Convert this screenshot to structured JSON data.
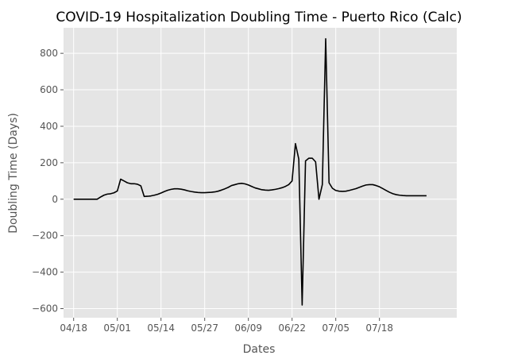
{
  "chart_data": {
    "type": "line",
    "title": "COVID-19 Hospitalization Doubling Time - Puerto Rico (Calc)",
    "xlabel": "Dates",
    "ylabel": "Doubling Time (Days)",
    "x_start": "2020-04-18",
    "x_step_days": 1,
    "xlim": [
      -3,
      114
    ],
    "ylim": [
      -650,
      940
    ],
    "x_ticks": [
      {
        "day": 0,
        "label": "04/18"
      },
      {
        "day": 13,
        "label": "05/01"
      },
      {
        "day": 26,
        "label": "05/14"
      },
      {
        "day": 39,
        "label": "05/27"
      },
      {
        "day": 52,
        "label": "06/09"
      },
      {
        "day": 65,
        "label": "06/22"
      },
      {
        "day": 78,
        "label": "07/05"
      },
      {
        "day": 91,
        "label": "07/18"
      }
    ],
    "y_ticks": [
      -600,
      -400,
      -200,
      0,
      200,
      400,
      600,
      800
    ],
    "grid": true,
    "series": [
      {
        "color": "#000000",
        "points": [
          [
            0,
            0
          ],
          [
            1,
            0
          ],
          [
            2,
            0
          ],
          [
            3,
            0
          ],
          [
            4,
            0
          ],
          [
            5,
            0
          ],
          [
            6,
            0
          ],
          [
            7,
            0
          ],
          [
            8,
            12
          ],
          [
            9,
            22
          ],
          [
            10,
            28
          ],
          [
            11,
            30
          ],
          [
            12,
            35
          ],
          [
            13,
            45
          ],
          [
            14,
            110
          ],
          [
            15,
            100
          ],
          [
            16,
            90
          ],
          [
            17,
            85
          ],
          [
            18,
            85
          ],
          [
            19,
            82
          ],
          [
            20,
            73
          ],
          [
            21,
            15
          ],
          [
            22,
            16
          ],
          [
            23,
            18
          ],
          [
            24,
            22
          ],
          [
            25,
            27
          ],
          [
            26,
            34
          ],
          [
            27,
            42
          ],
          [
            28,
            49
          ],
          [
            29,
            54
          ],
          [
            30,
            57
          ],
          [
            31,
            57
          ],
          [
            32,
            55
          ],
          [
            33,
            51
          ],
          [
            34,
            46
          ],
          [
            35,
            42
          ],
          [
            36,
            39
          ],
          [
            37,
            37
          ],
          [
            38,
            36
          ],
          [
            39,
            36
          ],
          [
            40,
            37
          ],
          [
            41,
            38
          ],
          [
            42,
            40
          ],
          [
            43,
            44
          ],
          [
            44,
            50
          ],
          [
            45,
            57
          ],
          [
            46,
            65
          ],
          [
            47,
            75
          ],
          [
            48,
            80
          ],
          [
            49,
            85
          ],
          [
            50,
            87
          ],
          [
            51,
            84
          ],
          [
            52,
            78
          ],
          [
            53,
            70
          ],
          [
            54,
            62
          ],
          [
            55,
            57
          ],
          [
            56,
            52
          ],
          [
            57,
            50
          ],
          [
            58,
            49
          ],
          [
            59,
            51
          ],
          [
            60,
            54
          ],
          [
            61,
            58
          ],
          [
            62,
            63
          ],
          [
            63,
            70
          ],
          [
            64,
            80
          ],
          [
            65,
            100
          ],
          [
            66,
            305
          ],
          [
            67,
            220
          ],
          [
            68,
            -580
          ],
          [
            69,
            210
          ],
          [
            70,
            225
          ],
          [
            71,
            225
          ],
          [
            72,
            205
          ],
          [
            73,
            0
          ],
          [
            74,
            80
          ],
          [
            75,
            880
          ],
          [
            76,
            90
          ],
          [
            77,
            60
          ],
          [
            78,
            48
          ],
          [
            79,
            44
          ],
          [
            80,
            43
          ],
          [
            81,
            44
          ],
          [
            82,
            48
          ],
          [
            83,
            53
          ],
          [
            84,
            58
          ],
          [
            85,
            65
          ],
          [
            86,
            72
          ],
          [
            87,
            78
          ],
          [
            88,
            80
          ],
          [
            89,
            80
          ],
          [
            90,
            75
          ],
          [
            91,
            68
          ],
          [
            92,
            58
          ],
          [
            93,
            48
          ],
          [
            94,
            38
          ],
          [
            95,
            30
          ],
          [
            96,
            25
          ],
          [
            97,
            22
          ],
          [
            98,
            20
          ],
          [
            99,
            19
          ],
          [
            100,
            19
          ],
          [
            101,
            19
          ],
          [
            102,
            19
          ],
          [
            103,
            19
          ],
          [
            104,
            19
          ],
          [
            105,
            19
          ]
        ]
      }
    ]
  }
}
